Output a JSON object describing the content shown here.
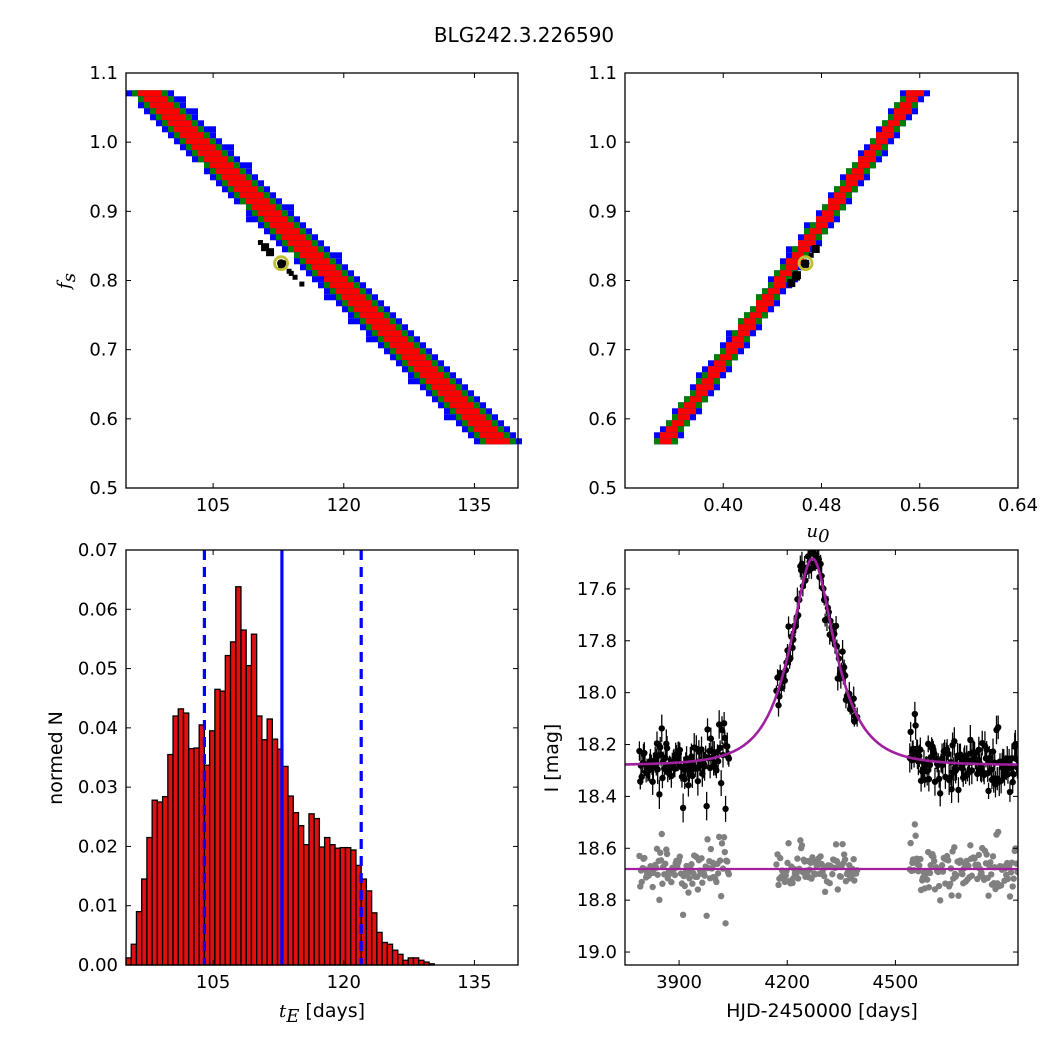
{
  "figure": {
    "title": "BLG242.3.226590"
  },
  "colors": {
    "sigma1": "#ff0000",
    "sigma2": "#008000",
    "sigma3": "#0000ff",
    "best": "#000000",
    "marker_edge": "#bfbf30",
    "hist_fill": "#dd1111",
    "model": "#a020a0",
    "data": "#000000",
    "residual": "#808080",
    "guide": "#0000ff"
  },
  "chart_data": [
    {
      "type": "heatmap",
      "panel": "tE-fs",
      "xlabel": "",
      "ylabel": "f_s",
      "ylabel_text": {
        "base": "f",
        "sub": "s"
      },
      "xlim": [
        95,
        140
      ],
      "ylim": [
        0.5,
        1.1
      ],
      "xticks": [
        105,
        120,
        135
      ],
      "yticks": [
        0.5,
        0.6,
        0.7,
        0.8,
        0.9,
        1.0,
        1.1
      ],
      "ridge": {
        "x_start": 97.5,
        "y_start": 1.075,
        "x_end": 137.5,
        "y_end": 0.57,
        "half_width_x": [
          1.0,
          1.7,
          2.5
        ]
      },
      "best_fit": {
        "x": 112.8,
        "y": 0.825
      }
    },
    {
      "type": "heatmap",
      "panel": "u0-fs",
      "xlabel": "u_0",
      "ylabel": "",
      "xlabel_text": {
        "base": "u",
        "sub": "0"
      },
      "xlim": [
        0.32,
        0.64
      ],
      "ylim": [
        0.5,
        1.1
      ],
      "xticks": [
        0.4,
        0.48,
        0.56,
        0.64
      ],
      "yticks": [
        0.5,
        0.6,
        0.7,
        0.8,
        0.9,
        1.0,
        1.1
      ],
      "ridge": {
        "x_start": 0.352,
        "y_start": 0.565,
        "x_end": 0.558,
        "y_end": 1.075,
        "half_width_x": [
          0.003,
          0.0055,
          0.008
        ]
      },
      "best_fit": {
        "x": 0.467,
        "y": 0.825
      }
    },
    {
      "type": "bar",
      "panel": "tE-histogram",
      "xlabel": "t_E [days]",
      "ylabel": "normed N",
      "xlabel_text": {
        "base": "t",
        "sub": "E",
        "suffix": " [days]"
      },
      "xlim": [
        95,
        140
      ],
      "ylim": [
        0,
        0.07
      ],
      "xticks": [
        105,
        120,
        135
      ],
      "yticks": [
        0.0,
        0.01,
        0.02,
        0.03,
        0.04,
        0.05,
        0.06,
        0.07
      ],
      "bin_start": 95.0,
      "bin_width": 0.6,
      "values": [
        0.0012,
        0.0035,
        0.009,
        0.0145,
        0.0215,
        0.0278,
        0.0275,
        0.0284,
        0.0355,
        0.042,
        0.0432,
        0.0425,
        0.0365,
        0.0366,
        0.0405,
        0.0337,
        0.0395,
        0.0465,
        0.0462,
        0.0522,
        0.0545,
        0.0638,
        0.0565,
        0.0505,
        0.0558,
        0.042,
        0.038,
        0.0415,
        0.0381,
        0.0364,
        0.0335,
        0.0285,
        0.0257,
        0.0235,
        0.0203,
        0.0255,
        0.0247,
        0.0199,
        0.0215,
        0.0203,
        0.0197,
        0.0198,
        0.0198,
        0.0194,
        0.0168,
        0.0145,
        0.0125,
        0.0088,
        0.0055,
        0.0038,
        0.0035,
        0.0025,
        0.0018,
        0.0008,
        0.0012,
        0.0012,
        0.0008,
        0.0005,
        0.0002
      ],
      "vlines": [
        {
          "x": 104.0,
          "style": "dashed"
        },
        {
          "x": 112.9,
          "style": "solid"
        },
        {
          "x": 122.0,
          "style": "dashed"
        }
      ]
    },
    {
      "type": "scatter",
      "panel": "light-curve",
      "xlabel": "HJD-2450000 [days]",
      "ylabel": "I [mag]",
      "xlim": [
        3750,
        4840
      ],
      "ylim": [
        19.05,
        17.45
      ],
      "xticks": [
        3900,
        4200,
        4500
      ],
      "yticks": [
        17.6,
        17.8,
        18.0,
        18.2,
        18.4,
        18.6,
        18.8,
        19.0
      ],
      "model": {
        "t0": 4270,
        "tE": 113,
        "u0": 0.467,
        "fs": 0.825,
        "baseline": 18.28
      },
      "residual_offset": 18.68,
      "seasons": [
        [
          3790,
          4040
        ],
        [
          4170,
          4395
        ],
        [
          4540,
          4840
        ]
      ]
    }
  ]
}
